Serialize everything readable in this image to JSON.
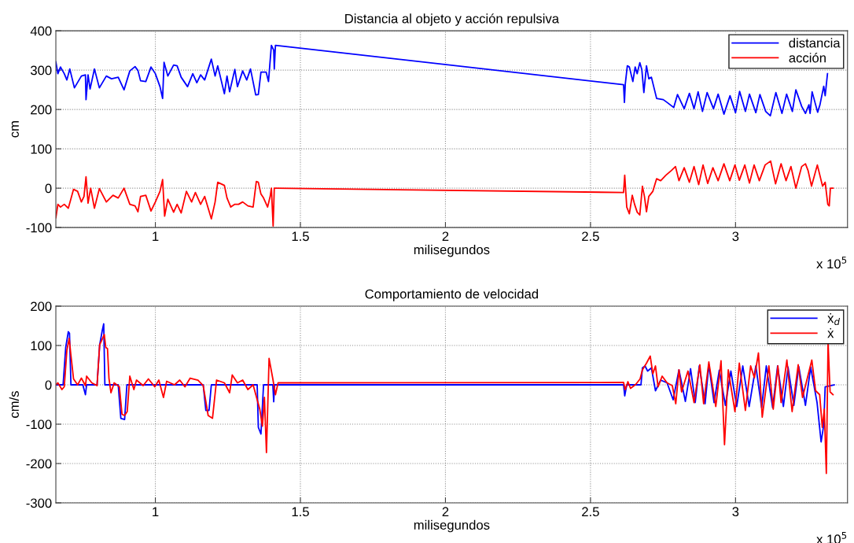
{
  "chart_data": [
    {
      "type": "line",
      "title": "Distancia al objeto y acción repulsiva",
      "xlabel": "milisegundos",
      "ylabel": "cm",
      "annotations": [
        "x 10$^{5}$"
      ],
      "xlim": [
        0.657,
        3.386
      ],
      "xticks": [
        1,
        1.5,
        2,
        2.5,
        3
      ],
      "ylim": [
        -100,
        400
      ],
      "yticks": [
        -100,
        0,
        100,
        200,
        300,
        400
      ],
      "grid": true,
      "legend": "top right",
      "line_style": "solid",
      "series": [
        {
          "name": "distancia",
          "color": "#0000ff",
          "x": [
            0.657,
            0.664,
            0.673,
            0.686,
            0.695,
            0.705,
            0.721,
            0.745,
            0.759,
            0.761,
            0.768,
            0.775,
            0.79,
            0.807,
            0.831,
            0.849,
            0.872,
            0.892,
            0.912,
            0.93,
            0.94,
            0.949,
            0.967,
            0.985,
            1.0,
            1.016,
            1.025,
            1.03,
            1.043,
            1.063,
            1.075,
            1.089,
            1.111,
            1.129,
            1.143,
            1.156,
            1.17,
            1.193,
            1.206,
            1.215,
            1.238,
            1.247,
            1.256,
            1.274,
            1.283,
            1.301,
            1.315,
            1.328,
            1.346,
            1.355,
            1.364,
            1.382,
            1.39,
            1.4,
            1.408,
            1.41,
            1.414,
            2.614,
            2.617,
            2.62,
            2.627,
            2.634,
            2.646,
            2.654,
            2.661,
            2.67,
            2.677,
            2.684,
            2.693,
            2.701,
            2.71,
            2.728,
            2.751,
            2.764,
            2.787,
            2.8,
            2.823,
            2.841,
            2.857,
            2.871,
            2.886,
            2.902,
            2.924,
            2.94,
            2.96,
            2.981,
            3.0,
            3.014,
            3.034,
            3.048,
            3.07,
            3.084,
            3.104,
            3.12,
            3.139,
            3.16,
            3.176,
            3.196,
            3.208,
            3.228,
            3.241,
            3.253,
            3.257,
            3.264,
            3.283,
            3.291,
            3.304,
            3.309,
            3.317
          ],
          "values": [
            321,
            291,
            308,
            291,
            275,
            303,
            255,
            285,
            288,
            225,
            288,
            252,
            303,
            255,
            285,
            278,
            282,
            250,
            298,
            309,
            299,
            273,
            271,
            308,
            291,
            258,
            228,
            320,
            285,
            313,
            311,
            282,
            258,
            291,
            268,
            288,
            275,
            328,
            285,
            311,
            240,
            285,
            245,
            302,
            258,
            298,
            275,
            303,
            237,
            238,
            295,
            295,
            271,
            363,
            351,
            303,
            363,
            263,
            218,
            265,
            311,
            308,
            271,
            308,
            291,
            319,
            301,
            243,
            311,
            278,
            282,
            228,
            225,
            218,
            205,
            238,
            202,
            241,
            202,
            245,
            195,
            243,
            202,
            239,
            188,
            235,
            192,
            246,
            195,
            239,
            192,
            238,
            195,
            184,
            243,
            190,
            239,
            195,
            250,
            208,
            190,
            212,
            190,
            245,
            193,
            212,
            259,
            235,
            291
          ]
        },
        {
          "name": "acción",
          "color": "#ff0000",
          "x": [
            0.657,
            0.664,
            0.673,
            0.686,
            0.7,
            0.718,
            0.732,
            0.745,
            0.754,
            0.761,
            0.768,
            0.777,
            0.79,
            0.807,
            0.831,
            0.854,
            0.872,
            0.892,
            0.912,
            0.93,
            0.94,
            0.949,
            0.967,
            0.985,
            1.0,
            1.016,
            1.025,
            1.032,
            1.043,
            1.063,
            1.075,
            1.089,
            1.107,
            1.125,
            1.138,
            1.156,
            1.17,
            1.193,
            1.206,
            1.215,
            1.238,
            1.247,
            1.26,
            1.274,
            1.287,
            1.301,
            1.319,
            1.337,
            1.348,
            1.355,
            1.364,
            1.373,
            1.387,
            1.396,
            1.4,
            1.406,
            1.41,
            1.414,
            2.614,
            2.618,
            2.625,
            2.634,
            2.644,
            2.652,
            2.661,
            2.67,
            2.679,
            2.686,
            2.693,
            2.701,
            2.715,
            2.728,
            2.742,
            2.76,
            2.779,
            2.793,
            2.805,
            2.823,
            2.841,
            2.857,
            2.873,
            2.888,
            2.904,
            2.922,
            2.94,
            2.96,
            2.98,
            2.998,
            3.013,
            3.032,
            3.048,
            3.064,
            3.082,
            3.102,
            3.121,
            3.138,
            3.157,
            3.174,
            3.191,
            3.208,
            3.228,
            3.241,
            3.25,
            3.262,
            3.282,
            3.3,
            3.309,
            3.318,
            3.323,
            3.327,
            3.336
          ],
          "values": [
            -75,
            -41,
            -48,
            -41,
            -51,
            -3,
            -8,
            -35,
            -21,
            29,
            -38,
            0,
            -51,
            -1,
            -35,
            -18,
            -25,
            0,
            -41,
            -45,
            -60,
            -21,
            -18,
            -58,
            -35,
            -8,
            22,
            -71,
            -28,
            -61,
            -41,
            -63,
            -8,
            -35,
            -11,
            -41,
            -21,
            -78,
            -35,
            15,
            7,
            -25,
            -48,
            -41,
            -41,
            -35,
            -45,
            -48,
            17,
            15,
            -15,
            -25,
            -48,
            -20,
            0,
            -96,
            0,
            0,
            -11,
            33,
            -48,
            -65,
            -18,
            -41,
            -61,
            -68,
            5,
            -21,
            -60,
            -21,
            -8,
            24,
            19,
            33,
            45,
            55,
            19,
            52,
            15,
            55,
            9,
            59,
            12,
            52,
            19,
            62,
            19,
            59,
            20,
            59,
            13,
            59,
            19,
            59,
            69,
            11,
            62,
            19,
            55,
            0,
            55,
            62,
            45,
            5,
            59,
            5,
            15,
            -41,
            -45,
            0,
            0
          ]
        }
      ]
    },
    {
      "type": "line",
      "title": "Comportamiento de velocidad",
      "xlabel": "milisegundos",
      "ylabel": "cm/s",
      "annotations": [
        "x 10$^{5}$"
      ],
      "xlim": [
        0.657,
        3.386
      ],
      "xticks": [
        1,
        1.5,
        2,
        2.5,
        3
      ],
      "ylim": [
        -300,
        200
      ],
      "yticks": [
        -300,
        -200,
        -100,
        0,
        100,
        200
      ],
      "grid": true,
      "legend": "top right",
      "line_style": "solid",
      "series": [
        {
          "name": "ẋ$_{d}$",
          "color": "#0000ff",
          "x": [
            0.657,
            0.682,
            0.691,
            0.7,
            0.704,
            0.709,
            0.75,
            0.759,
            0.763,
            0.799,
            0.808,
            0.817,
            0.822,
            0.826,
            0.872,
            0.881,
            0.894,
            0.902,
            1.165,
            1.174,
            1.185,
            1.193,
            1.351,
            1.355,
            1.364,
            1.373,
            1.405,
            1.408,
            1.411,
            2.614,
            2.618,
            2.625,
            2.674,
            2.679,
            2.688,
            2.697,
            2.71,
            2.724,
            2.742,
            2.764,
            2.785,
            2.805,
            2.827,
            2.845,
            2.861,
            2.875,
            2.895,
            2.908,
            2.926,
            2.944,
            2.965,
            2.984,
            3.004,
            3.025,
            3.047,
            3.07,
            3.09,
            3.106,
            3.128,
            3.145,
            3.165,
            3.181,
            3.201,
            3.218,
            3.241,
            3.259,
            3.281,
            3.295,
            3.304,
            3.309,
            3.34
          ],
          "values": [
            0,
            0,
            95,
            135,
            131,
            0,
            0,
            -25,
            0,
            0,
            101,
            138,
            155,
            0,
            0,
            -85,
            -88,
            0,
            0,
            -65,
            -65,
            0,
            0,
            -108,
            -125,
            0,
            0,
            -43,
            0,
            0,
            -28,
            0,
            0,
            43,
            48,
            35,
            43,
            -15,
            12,
            5,
            -38,
            38,
            -42,
            41,
            -45,
            48,
            -48,
            51,
            -45,
            37,
            -52,
            35,
            -55,
            48,
            -55,
            48,
            -58,
            48,
            -58,
            48,
            -55,
            45,
            -52,
            46,
            -52,
            45,
            -45,
            -145,
            -102,
            -5,
            0
          ]
        },
        {
          "name": "ẋ",
          "color": "#ff0000",
          "x": [
            0.657,
            0.664,
            0.678,
            0.686,
            0.695,
            0.703,
            0.709,
            0.718,
            0.732,
            0.745,
            0.759,
            0.763,
            0.781,
            0.799,
            0.808,
            0.824,
            0.829,
            0.835,
            0.84,
            0.847,
            0.858,
            0.876,
            0.885,
            0.894,
            0.903,
            0.912,
            0.926,
            0.935,
            0.958,
            0.976,
            0.998,
            1.012,
            1.028,
            1.039,
            1.066,
            1.084,
            1.102,
            1.12,
            1.147,
            1.165,
            1.182,
            1.197,
            1.211,
            1.238,
            1.256,
            1.265,
            1.283,
            1.301,
            1.319,
            1.337,
            1.36,
            1.369,
            1.376,
            1.383,
            1.392,
            1.405,
            1.414,
            1.423,
            2.614,
            2.62,
            2.629,
            2.638,
            2.656,
            2.671,
            2.679,
            2.693,
            2.706,
            2.715,
            2.724,
            2.733,
            2.747,
            2.764,
            2.782,
            2.794,
            2.805,
            2.814,
            2.836,
            2.857,
            2.877,
            2.89,
            2.908,
            2.932,
            2.95,
            2.962,
            2.975,
            2.998,
            3.013,
            3.034,
            3.052,
            3.065,
            3.079,
            3.092,
            3.115,
            3.13,
            3.146,
            3.157,
            3.177,
            3.195,
            3.216,
            3.231,
            3.263,
            3.276,
            3.29,
            3.299,
            3.306,
            3.313,
            3.319,
            3.326,
            3.336
          ],
          "values": [
            0,
            5,
            -12,
            -5,
            88,
            118,
            75,
            15,
            0,
            17,
            -2,
            22,
            5,
            -2,
            102,
            128,
            95,
            92,
            17,
            -20,
            5,
            -5,
            -75,
            -78,
            -68,
            22,
            -12,
            12,
            -2,
            15,
            -5,
            12,
            -32,
            9,
            0,
            12,
            -5,
            17,
            12,
            -2,
            -78,
            -85,
            12,
            5,
            -20,
            25,
            5,
            12,
            -12,
            0,
            -62,
            -105,
            -32,
            -172,
            67,
            15,
            -25,
            5,
            6,
            -12,
            8,
            -9,
            1,
            15,
            38,
            55,
            73,
            28,
            48,
            -5,
            22,
            5,
            -2,
            -48,
            38,
            -18,
            35,
            -45,
            51,
            -48,
            58,
            -55,
            61,
            -152,
            38,
            -68,
            55,
            -65,
            48,
            18,
            81,
            -82,
            48,
            -62,
            48,
            -45,
            63,
            -68,
            51,
            -32,
            63,
            -15,
            -25,
            -108,
            -62,
            -225,
            108,
            -18,
            -25
          ]
        }
      ]
    }
  ]
}
